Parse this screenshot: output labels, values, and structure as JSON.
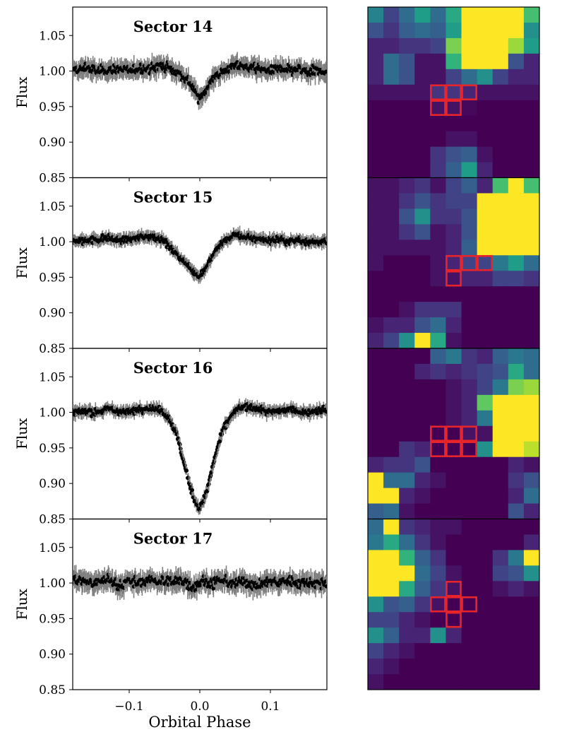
{
  "chart_data": {
    "type": "scatter",
    "xlabel": "Orbital Phase",
    "ylabel": "Flux",
    "xlim": [
      -0.18,
      0.18
    ],
    "ylim": [
      0.85,
      1.09
    ],
    "xticks": [
      -0.1,
      0.0,
      0.1
    ],
    "xtick_labels": [
      "−0.1",
      "0.0",
      "0.1"
    ],
    "yticks": [
      0.85,
      0.9,
      0.95,
      1.0,
      1.05
    ],
    "ytick_labels": [
      "0.85",
      "0.90",
      "0.95",
      "1.00",
      "1.05"
    ],
    "marker_color": "#000000",
    "errorbar_color": "#808080",
    "aperture_color": "#e8242b",
    "panels": [
      {
        "title": "Sector 14",
        "series": [
          {
            "x": [
              -0.175,
              -0.16,
              -0.145,
              -0.13,
              -0.115,
              -0.1,
              -0.085,
              -0.07,
              -0.055,
              -0.045,
              -0.035,
              -0.025,
              -0.015,
              -0.008,
              0.0,
              0.008,
              0.015,
              0.025,
              0.035,
              0.05,
              0.065,
              0.08,
              0.095,
              0.11,
              0.125,
              0.14,
              0.155,
              0.17
            ],
            "y": [
              1.0,
              1.005,
              1.0,
              1.002,
              1.003,
              1.0,
              1.004,
              1.003,
              1.008,
              1.005,
              1.0,
              0.995,
              0.985,
              0.975,
              0.96,
              0.972,
              0.985,
              0.995,
              1.0,
              1.008,
              1.006,
              1.005,
              1.0,
              1.003,
              1.0,
              1.002,
              0.998,
              1.0
            ],
            "yerr": 0.012
          }
        ],
        "stamp": {
          "grid": [
            [
              0.45,
              0.2,
              0.35,
              0.55,
              0.35,
              0.6,
              1,
              1,
              1,
              1,
              0.7
            ],
            [
              0.25,
              0.15,
              0.3,
              0.35,
              0.3,
              0.55,
              1,
              1,
              1,
              1,
              0.5
            ],
            [
              0.1,
              0.1,
              0.15,
              0.15,
              0.2,
              0.8,
              1,
              1,
              1,
              0.85,
              0.55
            ],
            [
              0.1,
              0.35,
              0.25,
              0.05,
              0.05,
              0.65,
              1,
              1,
              1,
              0.25,
              0.1
            ],
            [
              0.1,
              0.35,
              0.25,
              0.05,
              0.05,
              0.2,
              0.35,
              0.5,
              0.2,
              0.1,
              0.1
            ],
            [
              0.05,
              0.05,
              0.05,
              0.05,
              0.15,
              0.15,
              0.1,
              0.05,
              0.05,
              0.05,
              0.05
            ],
            [
              0,
              0,
              0,
              0,
              0.05,
              0.05,
              0.02,
              0,
              0,
              0,
              0
            ],
            [
              0,
              0,
              0,
              0,
              0,
              0,
              0,
              0,
              0,
              0,
              0
            ],
            [
              0,
              0,
              0,
              0,
              0,
              0.05,
              0.05,
              0,
              0,
              0,
              0
            ],
            [
              0,
              0,
              0,
              0,
              0.15,
              0.25,
              0.3,
              0.05,
              0,
              0,
              0
            ],
            [
              0,
              0,
              0,
              0,
              0.15,
              0.3,
              0.55,
              0.1,
              0,
              0,
              0
            ]
          ],
          "aperture": [
            [
              4,
              5
            ],
            [
              5,
              5
            ],
            [
              6,
              5
            ],
            [
              4,
              6
            ],
            [
              5,
              6
            ]
          ]
        }
      },
      {
        "title": "Sector 15",
        "series": [
          {
            "x": [
              -0.175,
              -0.16,
              -0.145,
              -0.13,
              -0.115,
              -0.1,
              -0.085,
              -0.07,
              -0.055,
              -0.045,
              -0.035,
              -0.025,
              -0.015,
              -0.008,
              0.0,
              0.008,
              0.015,
              0.025,
              0.035,
              0.05,
              0.065,
              0.08,
              0.095,
              0.11,
              0.125,
              0.14,
              0.155,
              0.17
            ],
            "y": [
              1.0,
              1.002,
              1.003,
              1.005,
              1.002,
              1.004,
              1.006,
              1.008,
              1.005,
              0.995,
              0.985,
              0.975,
              0.965,
              0.958,
              0.952,
              0.962,
              0.975,
              0.99,
              1.0,
              1.01,
              1.006,
              1.005,
              1.002,
              1.004,
              1.0,
              1.002,
              1.0,
              1.0
            ],
            "yerr": 0.008
          }
        ],
        "stamp": {
          "grid": [
            [
              0.05,
              0.05,
              0.1,
              0.15,
              0.05,
              0.2,
              0.3,
              0.1,
              0.7,
              1,
              0.7
            ],
            [
              0.05,
              0.05,
              0.15,
              0.25,
              0.15,
              0.2,
              0.2,
              1,
              1,
              1,
              1
            ],
            [
              0.05,
              0.05,
              0.25,
              0.5,
              0.15,
              0.15,
              0.25,
              1,
              1,
              1,
              1
            ],
            [
              0.05,
              0.05,
              0.15,
              0.25,
              0.05,
              0.1,
              0.25,
              1,
              1,
              1,
              1
            ],
            [
              0.05,
              0.05,
              0.05,
              0.05,
              0.05,
              0.1,
              0.3,
              1,
              1,
              1,
              1
            ],
            [
              0.05,
              0,
              0,
              0,
              0.05,
              0.1,
              0.2,
              0.2,
              0.4,
              0.55,
              0.35
            ],
            [
              0,
              0,
              0,
              0,
              0.05,
              0.05,
              0.1,
              0.1,
              0.2,
              0.2,
              0.15
            ],
            [
              0,
              0,
              0,
              0,
              0,
              0,
              0,
              0,
              0,
              0,
              0
            ],
            [
              0,
              0,
              0.05,
              0.15,
              0.15,
              0.15,
              0,
              0,
              0,
              0,
              0
            ],
            [
              0.05,
              0.1,
              0.1,
              0.25,
              0.35,
              0.1,
              0,
              0,
              0,
              0,
              0
            ],
            [
              0.1,
              0.2,
              0.5,
              1,
              0.6,
              0.05,
              0,
              0,
              0,
              0,
              0
            ]
          ],
          "aperture": [
            [
              5,
              5
            ],
            [
              6,
              5
            ],
            [
              7,
              5
            ],
            [
              5,
              6
            ]
          ]
        }
      },
      {
        "title": "Sector 16",
        "series": [
          {
            "x": [
              -0.175,
              -0.16,
              -0.145,
              -0.13,
              -0.115,
              -0.1,
              -0.085,
              -0.07,
              -0.055,
              -0.045,
              -0.035,
              -0.03,
              -0.025,
              -0.02,
              -0.015,
              -0.01,
              -0.005,
              0.0,
              0.005,
              0.01,
              0.015,
              0.02,
              0.025,
              0.03,
              0.035,
              0.045,
              0.055,
              0.07,
              0.085,
              0.1,
              0.115,
              0.13,
              0.145,
              0.16,
              0.175
            ],
            "y": [
              1.0,
              1.002,
              1.0,
              1.004,
              1.002,
              1.0,
              1.005,
              1.006,
              1.003,
              0.995,
              0.975,
              0.96,
              0.94,
              0.92,
              0.9,
              0.885,
              0.872,
              0.865,
              0.875,
              0.89,
              0.91,
              0.93,
              0.95,
              0.965,
              0.98,
              0.995,
              1.005,
              1.008,
              1.005,
              1.0,
              1.002,
              1.004,
              1.0,
              1.002,
              1.003
            ],
            "yerr": 0.008
          }
        ],
        "stamp": {
          "grid": [
            [
              0,
              0,
              0,
              0,
              0.3,
              0.4,
              0.15,
              0.1,
              0.3,
              0.4,
              0.35
            ],
            [
              0,
              0,
              0,
              0.1,
              0.15,
              0.1,
              0.15,
              0.2,
              0.25,
              0.6,
              0.35
            ],
            [
              0,
              0,
              0,
              0,
              0,
              0.05,
              0.1,
              0.2,
              0.4,
              0.8,
              0.85
            ],
            [
              0,
              0,
              0,
              0,
              0,
              0.05,
              0.1,
              0.75,
              1,
              1,
              1
            ],
            [
              0,
              0,
              0,
              0,
              0,
              0.05,
              0.1,
              0.4,
              1,
              1,
              1
            ],
            [
              0,
              0,
              0,
              0,
              0,
              0,
              0.05,
              0.05,
              1,
              1,
              1
            ],
            [
              0,
              0,
              0.15,
              0.1,
              0,
              0,
              0,
              0.5,
              1,
              1,
              0.9
            ],
            [
              0.1,
              0.15,
              0.15,
              0.25,
              0,
              0,
              0,
              0,
              0,
              0.1,
              0.05
            ],
            [
              1,
              0.35,
              0.35,
              0.1,
              0.05,
              0,
              0,
              0,
              0,
              0.15,
              0.25
            ],
            [
              1,
              1,
              0.1,
              0.05,
              0,
              0,
              0,
              0,
              0,
              0.1,
              0.35
            ],
            [
              0.3,
              0.35,
              0.05,
              0,
              0,
              0,
              0,
              0,
              0,
              0.25,
              0.1
            ]
          ],
          "aperture": [
            [
              4,
              5
            ],
            [
              5,
              5
            ],
            [
              6,
              5
            ],
            [
              4,
              6
            ],
            [
              5,
              6
            ],
            [
              6,
              6
            ]
          ]
        }
      },
      {
        "title": "Sector 17",
        "series": [
          {
            "x": [
              -0.175,
              -0.16,
              -0.145,
              -0.13,
              -0.115,
              -0.1,
              -0.085,
              -0.07,
              -0.055,
              -0.04,
              -0.025,
              -0.01,
              0.005,
              0.02,
              0.035,
              0.05,
              0.065,
              0.08,
              0.095,
              0.11,
              0.125,
              0.14,
              0.155,
              0.17
            ],
            "y": [
              1.005,
              1.002,
              1.0,
              1.006,
              0.998,
              1.002,
              1.0,
              1.004,
              1.003,
              1.0,
              1.005,
              0.995,
              1.002,
              1.0,
              1.004,
              0.998,
              1.003,
              0.995,
              1.002,
              1.0,
              1.003,
              1.0,
              1.002,
              1.0
            ],
            "yerr": 0.013
          }
        ],
        "stamp": {
          "grid": [
            [
              0.35,
              1,
              0.15,
              0.1,
              0.05,
              0.05,
              0,
              0,
              0,
              0,
              0
            ],
            [
              0.4,
              0.6,
              0.35,
              0.15,
              0.05,
              0,
              0,
              0,
              0,
              0,
              0.1
            ],
            [
              1,
              1,
              0.65,
              0.3,
              0.15,
              0,
              0,
              0,
              0.15,
              0.4,
              1
            ],
            [
              1,
              1,
              1,
              0.35,
              0.2,
              0.05,
              0,
              0,
              0.2,
              0.25,
              0.5
            ],
            [
              1,
              1,
              0.6,
              0.3,
              0.15,
              0.05,
              0,
              0,
              0.05,
              0.1,
              0.05
            ],
            [
              0.5,
              0.25,
              0.3,
              0.15,
              0.05,
              0,
              0,
              0,
              0,
              0,
              0
            ],
            [
              0.2,
              0.2,
              0.1,
              0.05,
              0,
              0,
              0,
              0,
              0,
              0,
              0
            ],
            [
              0.5,
              0.3,
              0.1,
              0.1,
              0.5,
              0.1,
              0,
              0,
              0,
              0,
              0
            ],
            [
              0.2,
              0.1,
              0.05,
              0,
              0,
              0,
              0,
              0,
              0,
              0,
              0
            ],
            [
              0.1,
              0.05,
              0,
              0,
              0,
              0,
              0,
              0,
              0,
              0,
              0
            ],
            [
              0.05,
              0,
              0,
              0,
              0,
              0,
              0,
              0,
              0,
              0,
              0
            ]
          ],
          "aperture": [
            [
              5,
              4
            ],
            [
              4,
              5
            ],
            [
              5,
              5
            ],
            [
              6,
              5
            ],
            [
              5,
              6
            ]
          ]
        }
      }
    ]
  }
}
